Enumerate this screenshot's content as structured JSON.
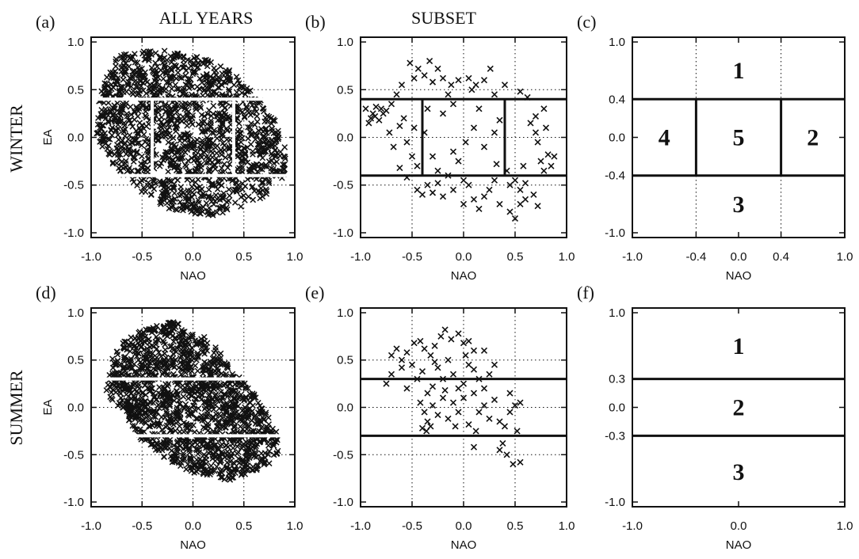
{
  "column_titles": [
    "ALL YEARS",
    "SUBSET"
  ],
  "row_labels": [
    "WINTER",
    "SUMMER"
  ],
  "colors": {
    "ink": "#111111",
    "divider": "#ffffff",
    "background": "#ffffff"
  },
  "chart_data": [
    {
      "panel": "(a)",
      "type": "scatter",
      "marker": "x",
      "density": "dense",
      "xlabel": "NAO",
      "ylabel": "EA",
      "xlim": [
        -1,
        1
      ],
      "ylim": [
        -1.05,
        1.05
      ],
      "xticks": [
        -1,
        -0.5,
        0,
        0.5,
        1
      ],
      "xtick_labels": [
        "-1.0",
        "-0.5",
        "0.0",
        "0.5",
        "1.0"
      ],
      "yticks": [
        -1,
        -0.5,
        0,
        0.5,
        1
      ],
      "ytick_labels": [
        "-1.0",
        "-0.5",
        "0.0",
        "0.5",
        "1.0"
      ],
      "grid": true,
      "region_lines": {
        "color": "white",
        "h": [
          0.4,
          -0.4
        ],
        "v": [
          -0.4,
          0.4
        ]
      },
      "cloud": [
        [
          -0.75,
          0.85
        ],
        [
          -0.55,
          0.9
        ],
        [
          -0.3,
          0.92
        ],
        [
          0,
          0.88
        ],
        [
          0.3,
          0.75
        ],
        [
          0.5,
          0.6
        ],
        [
          0.7,
          0.35
        ],
        [
          0.85,
          0.1
        ],
        [
          0.92,
          -0.1
        ],
        [
          0.9,
          -0.4
        ],
        [
          0.75,
          -0.6
        ],
        [
          0.5,
          -0.72
        ],
        [
          0.2,
          -0.82
        ],
        [
          0,
          -0.85
        ],
        [
          -0.3,
          -0.75
        ],
        [
          -0.55,
          -0.55
        ],
        [
          -0.78,
          -0.3
        ],
        [
          -0.95,
          0
        ],
        [
          -0.95,
          0.3
        ],
        [
          -0.88,
          0.55
        ]
      ]
    },
    {
      "panel": "(b)",
      "type": "scatter",
      "marker": "x",
      "density": "sparse",
      "xlabel": "NAO",
      "ylabel": "",
      "xlim": [
        -1,
        1
      ],
      "ylim": [
        -1.05,
        1.05
      ],
      "xticks": [
        -1,
        -0.5,
        0,
        0.5,
        1
      ],
      "xtick_labels": [
        "-1.0",
        "-0.5",
        "0.0",
        "0.5",
        "1.0"
      ],
      "yticks": [
        -1,
        -0.5,
        0,
        0.5,
        1
      ],
      "ytick_labels": [
        "-1.0",
        "-0.5",
        "0.0",
        "0.5",
        "1.0"
      ],
      "grid": true,
      "region_lines": {
        "color": "black",
        "h": [
          0.4,
          -0.4
        ],
        "v": [
          -0.4,
          0.4
        ]
      },
      "points": [
        [
          -0.52,
          0.78
        ],
        [
          -0.48,
          0.62
        ],
        [
          -0.44,
          0.72
        ],
        [
          -0.38,
          0.65
        ],
        [
          -0.3,
          0.58
        ],
        [
          -0.25,
          0.72
        ],
        [
          -0.2,
          0.62
        ],
        [
          -0.12,
          0.55
        ],
        [
          -0.05,
          0.6
        ],
        [
          0.05,
          0.62
        ],
        [
          0.12,
          0.55
        ],
        [
          0.2,
          0.6
        ],
        [
          0.3,
          0.45
        ],
        [
          0.4,
          0.55
        ],
        [
          0.55,
          0.48
        ],
        [
          0.62,
          0.42
        ],
        [
          -0.6,
          0.55
        ],
        [
          -0.65,
          0.45
        ],
        [
          -0.7,
          0.35
        ],
        [
          -0.75,
          0.28
        ],
        [
          -0.8,
          0.3
        ],
        [
          -0.85,
          0.32
        ],
        [
          -0.88,
          0.25
        ],
        [
          -0.9,
          0.2
        ],
        [
          -0.86,
          0.22
        ],
        [
          -0.82,
          0.18
        ],
        [
          -0.78,
          0.25
        ],
        [
          -0.72,
          0.05
        ],
        [
          -0.68,
          -0.1
        ],
        [
          -0.62,
          0.12
        ],
        [
          -0.58,
          0.2
        ],
        [
          -0.55,
          -0.05
        ],
        [
          -0.5,
          -0.2
        ],
        [
          -0.48,
          0.1
        ],
        [
          -0.45,
          -0.3
        ],
        [
          -0.35,
          0.3
        ],
        [
          -0.3,
          -0.2
        ],
        [
          -0.25,
          -0.35
        ],
        [
          -0.2,
          0.25
        ],
        [
          -0.15,
          -0.4
        ],
        [
          -0.1,
          0.35
        ],
        [
          -0.05,
          -0.25
        ],
        [
          0,
          -0.45
        ],
        [
          0.05,
          -0.5
        ],
        [
          0.1,
          0.1
        ],
        [
          0.15,
          0.3
        ],
        [
          0.2,
          -0.1
        ],
        [
          0.25,
          -0.55
        ],
        [
          0.3,
          0.05
        ],
        [
          0.35,
          0.18
        ],
        [
          0.45,
          -0.5
        ],
        [
          0.5,
          -0.45
        ],
        [
          0.55,
          -0.55
        ],
        [
          0.6,
          -0.48
        ],
        [
          0.65,
          0.15
        ],
        [
          0.7,
          0.05
        ],
        [
          0.72,
          -0.05
        ],
        [
          0.75,
          -0.25
        ],
        [
          0.78,
          -0.35
        ],
        [
          0.8,
          0.1
        ],
        [
          0.82,
          -0.18
        ],
        [
          0.85,
          -0.3
        ],
        [
          0.88,
          -0.2
        ],
        [
          -0.45,
          -0.55
        ],
        [
          -0.4,
          -0.6
        ],
        [
          -0.35,
          -0.5
        ],
        [
          -0.3,
          -0.58
        ],
        [
          -0.2,
          -0.62
        ],
        [
          -0.1,
          -0.55
        ],
        [
          0,
          -0.7
        ],
        [
          0.1,
          -0.65
        ],
        [
          0.15,
          -0.75
        ],
        [
          0.2,
          -0.62
        ],
        [
          0.35,
          -0.7
        ],
        [
          0.45,
          -0.78
        ],
        [
          0.5,
          -0.85
        ],
        [
          0.55,
          -0.7
        ],
        [
          0.6,
          -0.65
        ],
        [
          0.68,
          -0.6
        ],
        [
          0.72,
          -0.72
        ],
        [
          -0.55,
          -0.42
        ],
        [
          -0.25,
          -0.48
        ],
        [
          0.3,
          -0.45
        ],
        [
          0.42,
          -0.35
        ],
        [
          0.58,
          -0.3
        ],
        [
          -0.62,
          -0.32
        ],
        [
          0.08,
          0.5
        ],
        [
          -0.15,
          0.45
        ],
        [
          0.26,
          0.72
        ],
        [
          -0.33,
          0.8
        ],
        [
          0.78,
          0.3
        ],
        [
          0.7,
          0.22
        ],
        [
          -0.95,
          0.3
        ],
        [
          -0.92,
          0.15
        ],
        [
          -0.1,
          -0.15
        ],
        [
          0.02,
          -0.05
        ],
        [
          -0.38,
          0.05
        ],
        [
          0.32,
          -0.28
        ]
      ]
    },
    {
      "panel": "(c)",
      "type": "table",
      "kind": "region_schematic",
      "xlabel": "NAO",
      "ylabel": "",
      "xlim": [
        -1,
        1
      ],
      "ylim": [
        -1.05,
        1.05
      ],
      "xticks": [
        -1,
        -0.4,
        0,
        0.4,
        1
      ],
      "xtick_labels": [
        "-1.0",
        "-0.4",
        "0.0",
        "0.4",
        "1.0"
      ],
      "yticks": [
        -1,
        -0.4,
        0,
        0.4,
        1
      ],
      "ytick_labels": [
        "-1.0",
        "-0.4",
        "0.0",
        "0.4",
        "1.0"
      ],
      "dotted_v": [
        -0.4,
        0.4
      ],
      "region_lines": {
        "color": "black",
        "h": [
          0.4,
          -0.4
        ],
        "v": [
          -0.4,
          0.4
        ]
      },
      "regions": [
        {
          "label": "1",
          "x": 0,
          "y": 0.7
        },
        {
          "label": "4",
          "x": -0.7,
          "y": 0
        },
        {
          "label": "5",
          "x": 0,
          "y": 0
        },
        {
          "label": "2",
          "x": 0.7,
          "y": 0
        },
        {
          "label": "3",
          "x": 0,
          "y": -0.7
        }
      ]
    },
    {
      "panel": "(d)",
      "type": "scatter",
      "marker": "x",
      "density": "dense",
      "xlabel": "NAO",
      "ylabel": "EA",
      "xlim": [
        -1,
        1
      ],
      "ylim": [
        -1.05,
        1.05
      ],
      "xticks": [
        -1,
        -0.5,
        0,
        0.5,
        1
      ],
      "xtick_labels": [
        "-1.0",
        "-0.5",
        "0.0",
        "0.5",
        "1.0"
      ],
      "yticks": [
        -1,
        -0.5,
        0,
        0.5,
        1
      ],
      "ytick_labels": [
        "-1.0",
        "-0.5",
        "0.0",
        "0.5",
        "1.0"
      ],
      "grid": true,
      "region_lines": {
        "color": "white",
        "h": [
          0.3,
          -0.3
        ],
        "v": []
      },
      "cloud": [
        [
          -0.65,
          0.75
        ],
        [
          -0.4,
          0.85
        ],
        [
          -0.2,
          0.92
        ],
        [
          0,
          0.8
        ],
        [
          0.2,
          0.7
        ],
        [
          0.35,
          0.45
        ],
        [
          0.55,
          0.25
        ],
        [
          0.72,
          -0.05
        ],
        [
          0.82,
          -0.25
        ],
        [
          0.85,
          -0.45
        ],
        [
          0.75,
          -0.6
        ],
        [
          0.55,
          -0.7
        ],
        [
          0.35,
          -0.78
        ],
        [
          0.15,
          -0.75
        ],
        [
          -0.1,
          -0.65
        ],
        [
          -0.3,
          -0.52
        ],
        [
          -0.5,
          -0.35
        ],
        [
          -0.7,
          -0.05
        ],
        [
          -0.85,
          0.15
        ],
        [
          -0.85,
          0.35
        ],
        [
          -0.78,
          0.55
        ]
      ]
    },
    {
      "panel": "(e)",
      "type": "scatter",
      "marker": "x",
      "density": "sparse",
      "xlabel": "NAO",
      "ylabel": "",
      "xlim": [
        -1,
        1
      ],
      "ylim": [
        -1.05,
        1.05
      ],
      "xticks": [
        -1,
        -0.5,
        0,
        0.5,
        1
      ],
      "xtick_labels": [
        "-1.0",
        "-0.5",
        "0.0",
        "0.5",
        "1.0"
      ],
      "yticks": [
        -1,
        -0.5,
        0,
        0.5,
        1
      ],
      "ytick_labels": [
        "-1.0",
        "-0.5",
        "0.0",
        "0.5",
        "1.0"
      ],
      "grid": true,
      "region_lines": {
        "color": "black",
        "h": [
          0.3,
          -0.3
        ],
        "v": []
      },
      "points": [
        [
          -0.7,
          0.55
        ],
        [
          -0.65,
          0.62
        ],
        [
          -0.6,
          0.5
        ],
        [
          -0.55,
          0.58
        ],
        [
          -0.48,
          0.68
        ],
        [
          -0.42,
          0.7
        ],
        [
          -0.38,
          0.62
        ],
        [
          -0.32,
          0.55
        ],
        [
          -0.28,
          0.65
        ],
        [
          -0.22,
          0.75
        ],
        [
          -0.18,
          0.82
        ],
        [
          -0.12,
          0.72
        ],
        [
          -0.05,
          0.78
        ],
        [
          0,
          0.68
        ],
        [
          0.05,
          0.7
        ],
        [
          0.1,
          0.6
        ],
        [
          -0.75,
          0.25
        ],
        [
          -0.7,
          0.35
        ],
        [
          -0.55,
          0.2
        ],
        [
          -0.5,
          0.45
        ],
        [
          -0.45,
          0.3
        ],
        [
          -0.4,
          0.38
        ],
        [
          -0.35,
          0.15
        ],
        [
          -0.3,
          0.22
        ],
        [
          -0.25,
          0.42
        ],
        [
          -0.2,
          0.3
        ],
        [
          -0.15,
          0.5
        ],
        [
          -0.1,
          0.35
        ],
        [
          -0.05,
          0.2
        ],
        [
          0,
          0.25
        ],
        [
          0.05,
          0.45
        ],
        [
          0.1,
          0.4
        ],
        [
          0.15,
          0.3
        ],
        [
          0.2,
          0.2
        ],
        [
          0.25,
          0.35
        ],
        [
          -0.42,
          0.05
        ],
        [
          -0.38,
          -0.05
        ],
        [
          -0.35,
          -0.15
        ],
        [
          -0.32,
          -0.2
        ],
        [
          -0.3,
          0.02
        ],
        [
          -0.25,
          -0.08
        ],
        [
          -0.2,
          0.1
        ],
        [
          -0.15,
          -0.12
        ],
        [
          -0.1,
          0.05
        ],
        [
          -0.05,
          -0.05
        ],
        [
          0,
          0.1
        ],
        [
          0.05,
          -0.18
        ],
        [
          0.1,
          0.15
        ],
        [
          0.15,
          -0.05
        ],
        [
          0.2,
          0.02
        ],
        [
          0.25,
          -0.12
        ],
        [
          0.3,
          0.08
        ],
        [
          0.35,
          -0.15
        ],
        [
          0.4,
          -0.2
        ],
        [
          0.45,
          -0.05
        ],
        [
          0.5,
          0.02
        ],
        [
          0.52,
          -0.25
        ],
        [
          0.55,
          0.05
        ],
        [
          -0.4,
          -0.22
        ],
        [
          -0.36,
          -0.25
        ],
        [
          0.38,
          -0.38
        ],
        [
          0.42,
          -0.5
        ],
        [
          0.48,
          -0.6
        ],
        [
          0.35,
          -0.45
        ],
        [
          0.1,
          -0.42
        ],
        [
          0.55,
          -0.58
        ],
        [
          -0.6,
          0.42
        ],
        [
          0.02,
          0.55
        ],
        [
          0.3,
          0.45
        ],
        [
          -0.28,
          0.48
        ],
        [
          0.2,
          0.6
        ],
        [
          0.45,
          0.15
        ],
        [
          -0.18,
          0.18
        ],
        [
          0.12,
          -0.25
        ],
        [
          -0.08,
          -0.2
        ]
      ]
    },
    {
      "panel": "(f)",
      "type": "table",
      "kind": "region_schematic",
      "xlabel": "NAO",
      "ylabel": "",
      "xlim": [
        -1,
        1
      ],
      "ylim": [
        -1.05,
        1.05
      ],
      "xticks": [
        -1,
        0,
        1
      ],
      "xtick_labels": [
        "-1.0",
        "0.0",
        "1.0"
      ],
      "yticks": [
        -1,
        -0.3,
        0,
        0.3,
        1
      ],
      "ytick_labels": [
        "-1.0",
        "-0.3",
        "0.0",
        "0.3",
        "1.0"
      ],
      "dotted_v": [],
      "region_lines": {
        "color": "black",
        "h": [
          0.3,
          -0.3
        ],
        "v": []
      },
      "regions": [
        {
          "label": "1",
          "x": 0,
          "y": 0.65
        },
        {
          "label": "2",
          "x": 0,
          "y": 0
        },
        {
          "label": "3",
          "x": 0,
          "y": -0.68
        }
      ]
    }
  ]
}
